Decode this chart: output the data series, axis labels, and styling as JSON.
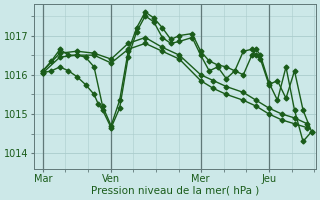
{
  "bg_color": "#cce8e8",
  "grid_color": "#aacccc",
  "line_color": "#1a5c1a",
  "line_width": 1.0,
  "marker": "D",
  "marker_size": 2.5,
  "xlabel": "Pression niveau de la mer( hPa )",
  "yticks": [
    1014,
    1015,
    1016,
    1017
  ],
  "ylim": [
    1013.6,
    1017.8
  ],
  "xtick_labels": [
    "Mar",
    "Ven",
    "Mer",
    "Jeu"
  ],
  "xtick_positions": [
    0,
    80,
    185,
    265
  ],
  "xlim": [
    -10,
    320
  ],
  "vline_positions": [
    0,
    80,
    185,
    265
  ],
  "series": [
    {
      "x": [
        0,
        20,
        40,
        60,
        80,
        100,
        120,
        140,
        160,
        185,
        200,
        215,
        235,
        250,
        265,
        280,
        295,
        310
      ],
      "y": [
        1016.1,
        1016.55,
        1016.6,
        1016.55,
        1016.4,
        1016.8,
        1016.95,
        1016.7,
        1016.5,
        1016.0,
        1015.85,
        1015.7,
        1015.55,
        1015.35,
        1015.15,
        1015.0,
        1014.9,
        1014.75
      ]
    },
    {
      "x": [
        0,
        20,
        40,
        60,
        80,
        100,
        120,
        140,
        160,
        185,
        200,
        215,
        235,
        250,
        265,
        280,
        295,
        310
      ],
      "y": [
        1016.05,
        1016.45,
        1016.5,
        1016.5,
        1016.3,
        1016.65,
        1016.8,
        1016.6,
        1016.4,
        1015.85,
        1015.65,
        1015.5,
        1015.35,
        1015.2,
        1015.0,
        1014.85,
        1014.75,
        1014.65
      ]
    },
    {
      "x": [
        0,
        10,
        20,
        30,
        40,
        50,
        60,
        70,
        80,
        90,
        100,
        110,
        120,
        130,
        140,
        150,
        160,
        175,
        185,
        195,
        205,
        215,
        225,
        235,
        245,
        250,
        255,
        265,
        275,
        285,
        295,
        305,
        315
      ],
      "y": [
        1016.1,
        1016.35,
        1016.65,
        1016.5,
        1016.5,
        1016.45,
        1016.2,
        1015.2,
        1014.7,
        1015.35,
        1016.6,
        1017.2,
        1017.6,
        1017.45,
        1017.2,
        1016.9,
        1017.0,
        1017.05,
        1016.6,
        1016.35,
        1016.25,
        1016.2,
        1016.1,
        1016.0,
        1016.5,
        1016.65,
        1016.5,
        1015.8,
        1015.35,
        1016.2,
        1015.1,
        1014.3,
        1014.55
      ]
    },
    {
      "x": [
        0,
        10,
        20,
        30,
        40,
        50,
        60,
        65,
        70,
        80,
        90,
        100,
        110,
        120,
        130,
        140,
        150,
        160,
        175,
        185,
        195,
        205,
        215,
        225,
        235,
        245,
        250,
        255,
        265,
        275,
        285,
        295,
        305,
        315
      ],
      "y": [
        1016.05,
        1016.1,
        1016.2,
        1016.1,
        1015.95,
        1015.75,
        1015.5,
        1015.25,
        1015.1,
        1014.65,
        1015.15,
        1016.45,
        1017.1,
        1017.5,
        1017.35,
        1016.95,
        1016.8,
        1016.85,
        1016.95,
        1016.5,
        1016.1,
        1016.2,
        1015.9,
        1016.1,
        1016.6,
        1016.65,
        1016.5,
        1016.4,
        1015.75,
        1015.85,
        1015.4,
        1016.1,
        1015.1,
        1014.55
      ]
    }
  ]
}
